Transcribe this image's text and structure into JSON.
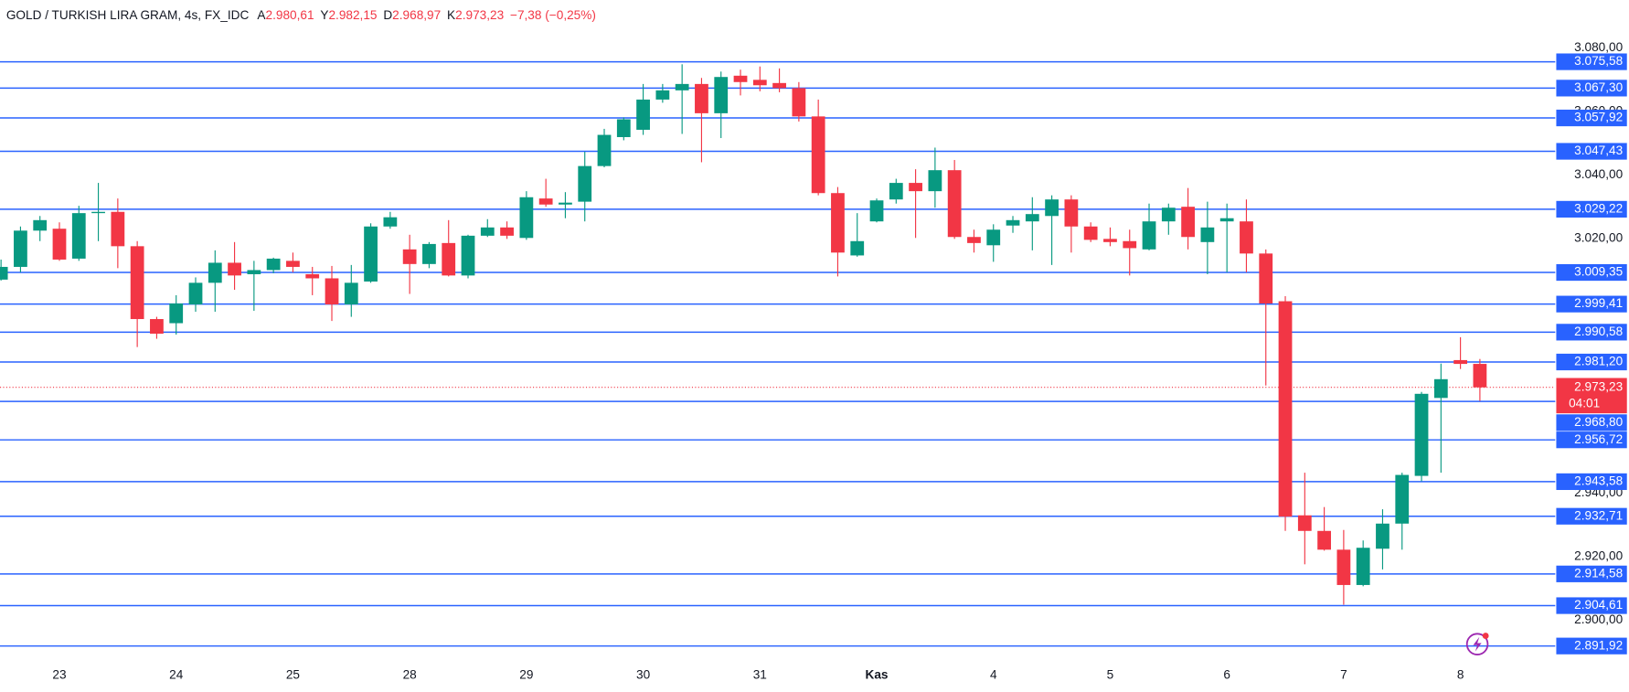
{
  "header": {
    "symbol": "GOLD / TURKISH LIRA GRAM, 4s, FX_IDC",
    "ohlc": [
      {
        "key": "A",
        "value": "2.980,61"
      },
      {
        "key": "Y",
        "value": "2.982,15"
      },
      {
        "key": "D",
        "value": "2.968,97"
      },
      {
        "key": "K",
        "value": "2.973,23"
      }
    ],
    "change": "−7,38 (−0,25%)"
  },
  "chart_data": {
    "type": "candlestick",
    "categories": [
      null,
      null,
      null,
      "23",
      null,
      null,
      null,
      null,
      null,
      "24",
      null,
      null,
      null,
      null,
      null,
      "25",
      null,
      null,
      null,
      null,
      null,
      "28",
      null,
      null,
      null,
      null,
      null,
      "29",
      null,
      null,
      null,
      null,
      null,
      "30",
      null,
      null,
      null,
      null,
      null,
      "31",
      null,
      null,
      null,
      null,
      null,
      "Kas",
      null,
      null,
      null,
      null,
      null,
      "4",
      null,
      null,
      null,
      null,
      null,
      "5",
      null,
      null,
      null,
      null,
      null,
      "6",
      null,
      null,
      null,
      null,
      null,
      "7",
      null,
      null,
      null,
      null,
      null,
      "8",
      null
    ],
    "open": [
      3007.1,
      3011.1,
      3022.5,
      3023.1,
      3013.7,
      3028.0,
      3028.4,
      3017.6,
      2994.7,
      2993.4,
      2999.3,
      3006.1,
      3012.4,
      3008.8,
      3010.1,
      3013.0,
      3008.8,
      3007.5,
      2999.3,
      3006.5,
      3023.8,
      3016.6,
      3012.0,
      3018.6,
      3008.4,
      3020.9,
      3023.5,
      3020.2,
      3032.6,
      3030.7,
      3031.6,
      3042.8,
      3051.9,
      3054.2,
      3063.7,
      3066.6,
      3068.6,
      3059.4,
      3071.2,
      3069.9,
      3068.9,
      3067.3,
      3058.4,
      3034.3,
      3014.7,
      3025.4,
      3032.3,
      3037.5,
      3034.9,
      3041.5,
      3020.5,
      3017.9,
      3024.1,
      3025.4,
      3027.1,
      3032.3,
      3023.8,
      3019.9,
      3019.2,
      3016.6,
      3025.4,
      3030.0,
      3018.9,
      3025.4,
      3025.4,
      3015.3,
      3000.3,
      2933.0,
      2928.1,
      2922.2,
      2911.1,
      2922.5,
      2930.4,
      2945.4,
      2969.9,
      2981.8,
      2980.61
    ],
    "high": [
      3013.4,
      3023.8,
      3027.1,
      3025.1,
      3030.3,
      3037.5,
      3032.6,
      3019.2,
      2995.4,
      3002.2,
      3007.8,
      3016.3,
      3018.9,
      3013.0,
      3014.0,
      3015.6,
      3011.1,
      3011.4,
      3011.7,
      3024.8,
      3028.4,
      3021.2,
      3018.9,
      3025.8,
      3021.2,
      3026.1,
      3025.4,
      3034.9,
      3038.8,
      3034.6,
      3047.3,
      3054.5,
      3058.1,
      3068.6,
      3068.6,
      3074.8,
      3070.5,
      3072.5,
      3073.1,
      3074.1,
      3073.5,
      3069.2,
      3063.7,
      3036.2,
      3028.0,
      3032.6,
      3038.8,
      3041.8,
      3048.6,
      3044.7,
      3022.8,
      3024.5,
      3027.1,
      3033.0,
      3033.6,
      3033.6,
      3025.1,
      3023.5,
      3022.8,
      3031.0,
      3031.0,
      3035.9,
      3031.6,
      3031.0,
      3032.3,
      3016.6,
      3001.9,
      2946.4,
      2935.6,
      2928.4,
      2925.1,
      2934.9,
      2946.4,
      2971.8,
      2980.7,
      2989.0,
      2982.15
    ],
    "low": [
      3006.8,
      3009.4,
      3019.2,
      3013.0,
      3013.0,
      3019.2,
      3010.7,
      2985.9,
      2988.5,
      2989.8,
      2997.0,
      2997.0,
      3003.9,
      2997.3,
      3009.1,
      3009.4,
      3002.2,
      2994.1,
      2995.4,
      3006.1,
      3023.1,
      3002.6,
      3010.7,
      3008.1,
      3007.5,
      3020.5,
      3019.9,
      3019.6,
      3030.0,
      3026.4,
      3025.4,
      3042.4,
      3050.9,
      3052.6,
      3062.7,
      3052.9,
      3044.0,
      3051.6,
      3065.0,
      3066.3,
      3066.0,
      3056.8,
      3033.6,
      3008.1,
      3014.3,
      3025.1,
      3031.0,
      3020.2,
      3029.7,
      3019.9,
      3015.6,
      3012.7,
      3021.8,
      3016.3,
      3011.7,
      3015.6,
      3018.9,
      3017.6,
      3008.4,
      3016.3,
      3021.2,
      3016.6,
      3008.8,
      3009.4,
      3009.4,
      2973.8,
      2928.1,
      2917.6,
      2921.9,
      2904.9,
      2910.7,
      2916.0,
      2922.2,
      2943.7,
      2946.4,
      2979.0,
      2968.97
    ],
    "close": [
      3011.1,
      3022.5,
      3025.8,
      3013.4,
      3028.0,
      3028.4,
      3017.6,
      2994.7,
      2990.1,
      2999.6,
      3006.1,
      3012.4,
      3008.4,
      3010.1,
      3013.7,
      3011.1,
      3007.5,
      2999.3,
      3006.1,
      3023.8,
      3026.7,
      3012.0,
      3018.3,
      3008.4,
      3020.9,
      3023.5,
      3020.9,
      3033.0,
      3030.7,
      3031.3,
      3042.8,
      3052.6,
      3057.5,
      3063.7,
      3066.6,
      3068.6,
      3059.4,
      3070.8,
      3069.2,
      3068.2,
      3067.3,
      3058.4,
      3034.3,
      3015.6,
      3019.2,
      3032.0,
      3037.5,
      3034.9,
      3041.5,
      3020.5,
      3018.6,
      3022.8,
      3025.8,
      3027.7,
      3032.3,
      3023.8,
      3019.6,
      3018.9,
      3017.0,
      3025.4,
      3029.7,
      3020.5,
      3023.5,
      3026.4,
      3015.3,
      2999.6,
      2932.6,
      2928.1,
      2922.2,
      2911.1,
      2922.8,
      2930.4,
      2945.7,
      2971.2,
      2975.8,
      2980.6,
      2973.23
    ],
    "up_color": "#089981",
    "down_color": "#f23645",
    "ylim": [
      2887.6,
      3087.8
    ],
    "yticks": [
      {
        "value": 3080,
        "label": "3.080,00"
      },
      {
        "value": 3060,
        "label": "3.060,00"
      },
      {
        "value": 3040,
        "label": "3.040,00"
      },
      {
        "value": 3020,
        "label": "3.020,00"
      },
      {
        "value": 2940,
        "label": "2.940,00"
      },
      {
        "value": 2920,
        "label": "2.920,00"
      },
      {
        "value": 2900,
        "label": "2.900,00"
      }
    ],
    "level_color": "#2962ff",
    "levels": [
      {
        "value": 3075.58,
        "label": "3.075,58"
      },
      {
        "value": 3067.3,
        "label": "3.067,30"
      },
      {
        "value": 3057.92,
        "label": "3.057,92"
      },
      {
        "value": 3047.43,
        "label": "3.047,43"
      },
      {
        "value": 3029.22,
        "label": "3.029,22"
      },
      {
        "value": 3009.35,
        "label": "3.009,35"
      },
      {
        "value": 2999.41,
        "label": "2.999,41"
      },
      {
        "value": 2990.58,
        "label": "2.990,58"
      },
      {
        "value": 2981.2,
        "label": "2.981,20"
      },
      {
        "value": 2968.8,
        "label": "2.968,80"
      },
      {
        "value": 2956.72,
        "label": "2.956,72"
      },
      {
        "value": 2943.58,
        "label": "2.943,58"
      },
      {
        "value": 2932.71,
        "label": "2.932,71"
      },
      {
        "value": 2914.58,
        "label": "2.914,58"
      },
      {
        "value": 2904.61,
        "label": "2.904,61"
      },
      {
        "value": 2891.92,
        "label": "2.891,92"
      }
    ],
    "price_label": {
      "value": 2973.23,
      "label": "2.973,23",
      "countdown": "04:01",
      "color": "#f23645"
    }
  }
}
